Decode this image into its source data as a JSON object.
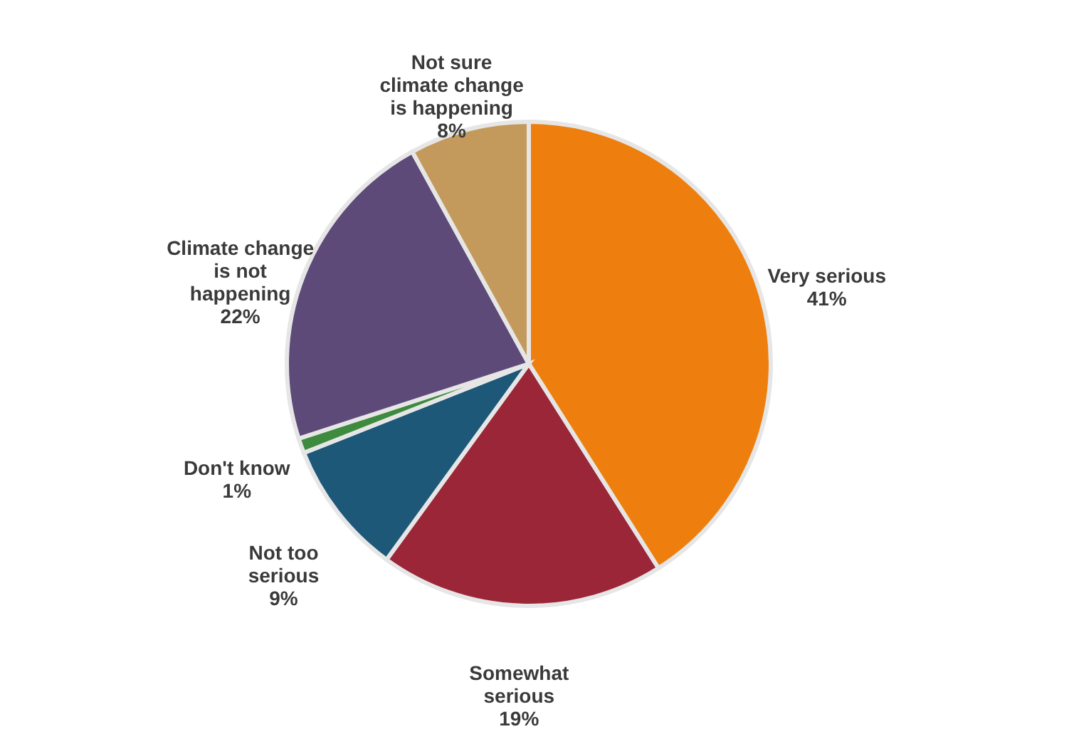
{
  "chart_data": {
    "type": "pie",
    "categories": [
      "Very serious",
      "Somewhat serious",
      "Not too serious",
      "Don't know",
      "Climate change is not happening",
      "Not sure climate change is happening"
    ],
    "values": [
      41,
      19,
      9,
      1,
      22,
      8
    ],
    "value_labels": [
      "41%",
      "19%",
      "9%",
      "1%",
      "22%",
      "8%"
    ],
    "colors": [
      "#ee7f0e",
      "#9b2638",
      "#1d5878",
      "#3e8a3e",
      "#5e4a78",
      "#c49a5c"
    ],
    "legend": false
  }
}
